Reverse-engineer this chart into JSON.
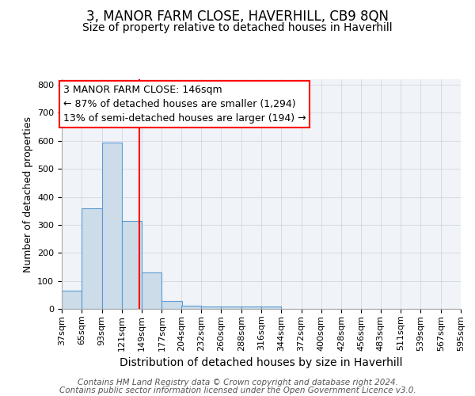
{
  "title": "3, MANOR FARM CLOSE, HAVERHILL, CB9 8QN",
  "subtitle": "Size of property relative to detached houses in Haverhill",
  "xlabel": "Distribution of detached houses by size in Haverhill",
  "ylabel": "Number of detached properties",
  "footnote1": "Contains HM Land Registry data © Crown copyright and database right 2024.",
  "footnote2": "Contains public sector information licensed under the Open Government Licence v3.0.",
  "bins": [
    37,
    65,
    93,
    121,
    149,
    177,
    204,
    232,
    260,
    288,
    316,
    344,
    372,
    400,
    428,
    456,
    483,
    511,
    539,
    567,
    595
  ],
  "counts": [
    65,
    360,
    595,
    315,
    130,
    28,
    10,
    8,
    8,
    8,
    8,
    0,
    0,
    0,
    0,
    0,
    0,
    0,
    0,
    0
  ],
  "bar_color": "#ccdce8",
  "bar_edgecolor": "#5b9bd5",
  "red_line_x": 146,
  "annotation_line1": "3 MANOR FARM CLOSE: 146sqm",
  "annotation_line2": "← 87% of detached houses are smaller (1,294)",
  "annotation_line3": "13% of semi-detached houses are larger (194) →",
  "annotation_box_color": "white",
  "annotation_box_edgecolor": "red",
  "ylim": [
    0,
    820
  ],
  "yticks": [
    0,
    100,
    200,
    300,
    400,
    500,
    600,
    700,
    800
  ],
  "title_fontsize": 12,
  "subtitle_fontsize": 10,
  "xlabel_fontsize": 10,
  "ylabel_fontsize": 9,
  "tick_fontsize": 8,
  "annotation_fontsize": 9,
  "footnote_fontsize": 7.5
}
